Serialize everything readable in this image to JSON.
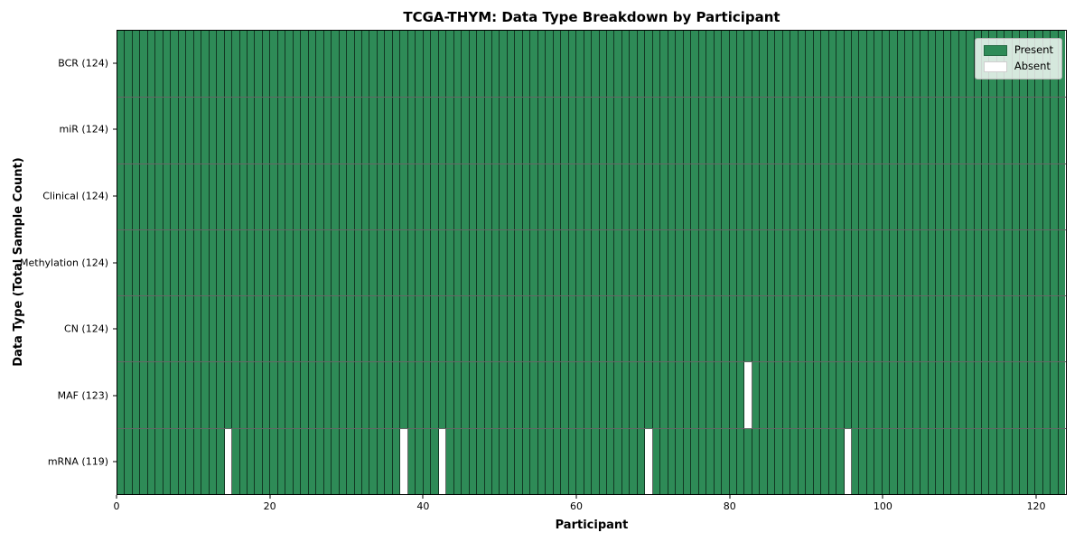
{
  "title": "TCGA-THYM: Data Type Breakdown by Participant",
  "legend": {
    "present_label": "Present",
    "absent_label": "Absent"
  },
  "colors": {
    "present": "#2e8b57",
    "absent": "#ffffff",
    "cell_edge": "#00000099",
    "spine": "#000000"
  },
  "chart_data": {
    "type": "heatmap",
    "title": "TCGA-THYM: Data Type Breakdown by Participant",
    "xlabel": "Participant",
    "ylabel": "Data Type (Total Sample Count)",
    "legend_entries": [
      "Present",
      "Absent"
    ],
    "legend_position": "upper right",
    "grid": false,
    "n_participants": 124,
    "xlim": [
      0,
      124
    ],
    "x_ticks": [
      0,
      20,
      40,
      60,
      80,
      100,
      120
    ],
    "rows": [
      {
        "data_type": "BCR",
        "label": "BCR (124)",
        "count": 124,
        "absent_participants": []
      },
      {
        "data_type": "miR",
        "label": "miR (124)",
        "count": 124,
        "absent_participants": []
      },
      {
        "data_type": "Clinical",
        "label": "Clinical (124)",
        "count": 124,
        "absent_participants": []
      },
      {
        "data_type": "Methylation",
        "label": "Methylation (124)",
        "count": 124,
        "absent_participants": []
      },
      {
        "data_type": "CN",
        "label": "CN (124)",
        "count": 124,
        "absent_participants": []
      },
      {
        "data_type": "MAF",
        "label": "MAF (123)",
        "count": 123,
        "absent_participants": [
          82
        ]
      },
      {
        "data_type": "mRNA",
        "label": "mRNA (119)",
        "count": 119,
        "absent_participants": [
          14,
          37,
          42,
          69,
          95
        ]
      }
    ]
  }
}
